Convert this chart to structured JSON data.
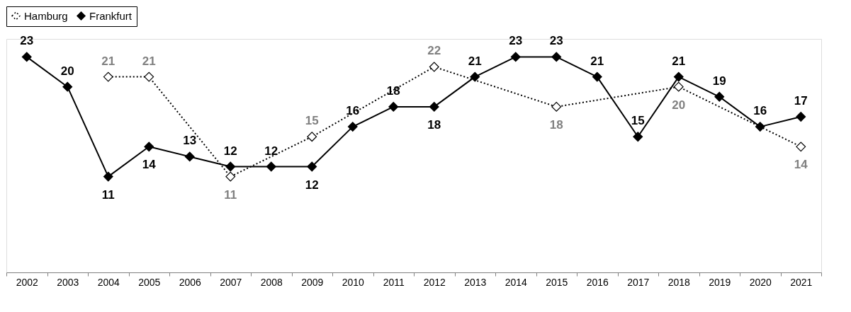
{
  "chart_data": {
    "type": "line",
    "categories": [
      "2002",
      "2003",
      "2004",
      "2005",
      "2006",
      "2007",
      "2008",
      "2009",
      "2010",
      "2011",
      "2012",
      "2013",
      "2014",
      "2015",
      "2016",
      "2017",
      "2018",
      "2019",
      "2020",
      "2021"
    ],
    "series": [
      {
        "name": "Hamburg",
        "color": "#000000",
        "line_style": "dotted",
        "values": [
          null,
          null,
          21,
          21,
          null,
          11,
          null,
          15,
          null,
          null,
          22,
          null,
          null,
          18,
          null,
          null,
          20,
          null,
          null,
          14
        ]
      },
      {
        "name": "Frankfurt",
        "color": "#000000",
        "line_style": "solid",
        "values": [
          23,
          20,
          11,
          14,
          13,
          12,
          12,
          12,
          16,
          18,
          18,
          21,
          23,
          23,
          21,
          15,
          21,
          19,
          16,
          17
        ]
      }
    ],
    "marker": "diamond",
    "data_labels": true,
    "grid": false,
    "legend": "top"
  }
}
